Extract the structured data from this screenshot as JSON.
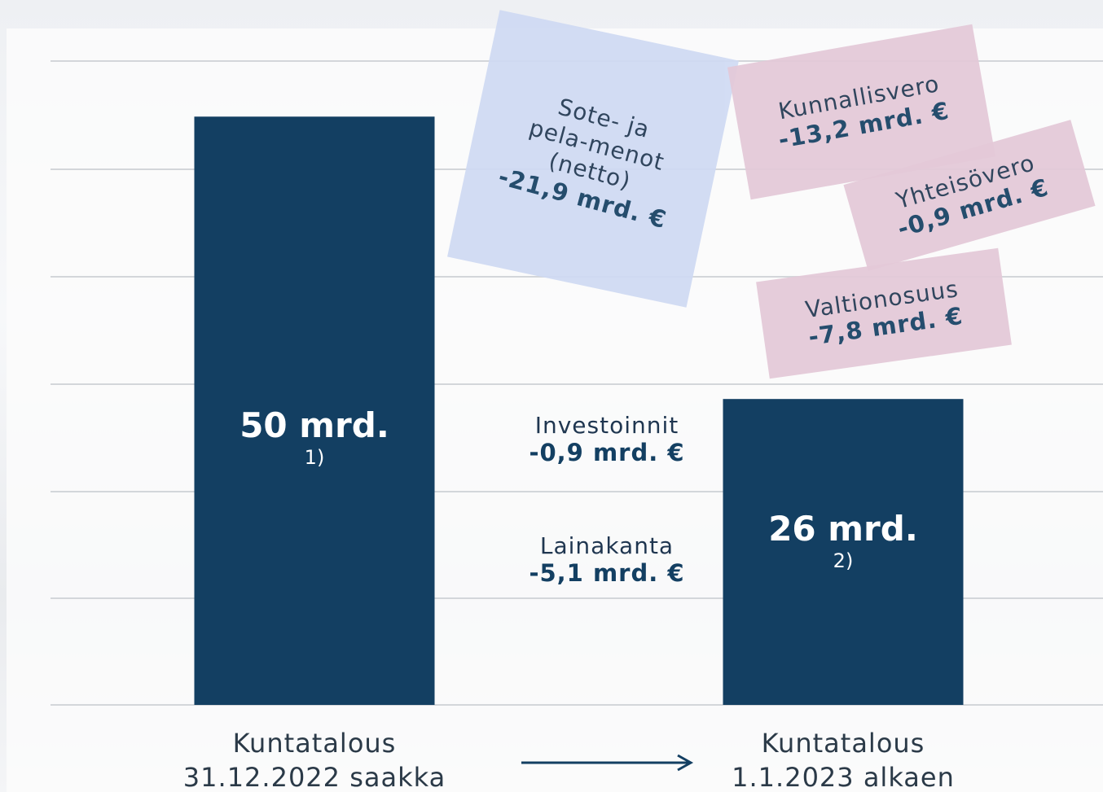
{
  "chart_data": {
    "type": "bar",
    "categories": [
      "Kuntatalous\n31.12.2022 saakka",
      "Kuntatalous\n1.1.2023 alkaen"
    ],
    "values": [
      50,
      26
    ],
    "value_labels": [
      "50 mrd.",
      "26 mrd."
    ],
    "footnotes": [
      "1)",
      "2)"
    ],
    "color": "#133f62",
    "ylim": [
      0,
      55
    ],
    "annotations": [
      {
        "text": "Sote- ja\npela-menot\n(netto)",
        "value": "-21,9 mrd. €"
      },
      {
        "text": "Kunnallisvero",
        "value": "-13,2 mrd. €"
      },
      {
        "text": "Yhteisövero",
        "value": "-0,9 mrd. €"
      },
      {
        "text": "Valtionosuus",
        "value": "-7,8 mrd. €"
      },
      {
        "text": "Investoinnit",
        "value": "-0,9 mrd. €"
      },
      {
        "text": "Lainakanta",
        "value": "-5,1 mrd. €"
      }
    ]
  }
}
